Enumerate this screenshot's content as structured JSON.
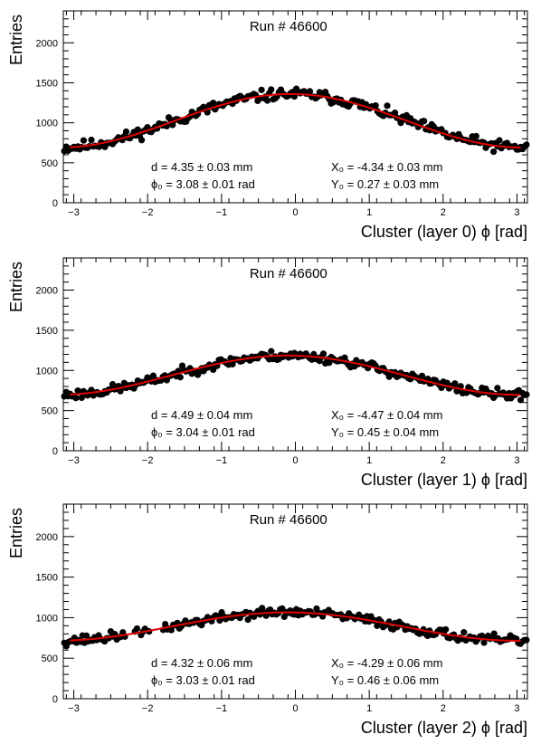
{
  "chart_data": [
    {
      "type": "scatter",
      "title": "Run # 46600",
      "xlabel": "Cluster (layer 0) ϕ [rad]",
      "ylabel": "Entries",
      "xlim": [
        -3.1416,
        3.1416
      ],
      "ylim": [
        0,
        2400
      ],
      "xticks": [
        -3,
        -2,
        -1,
        0,
        1,
        2,
        3
      ],
      "yticks": [
        0,
        500,
        1000,
        1500,
        2000
      ],
      "fit": {
        "model": "A - B*cos(phi - phi0)",
        "A": 1025,
        "B": 335,
        "phi0": 3.08,
        "color": "#e00000"
      },
      "data_model": {
        "n_points": 240,
        "noise": 35,
        "seed": 11
      },
      "fit_text": {
        "d": "d = 4.35 ± 0.03 mm",
        "phi0": "ϕ₀ = 3.08 ± 0.01 rad",
        "x0": "X₀ = -4.34 ± 0.03 mm",
        "y0": "Y₀ = 0.27 ± 0.03 mm"
      },
      "grid": false
    },
    {
      "type": "scatter",
      "title": "Run # 46600",
      "xlabel": "Cluster (layer 1) ϕ [rad]",
      "ylabel": "Entries",
      "xlim": [
        -3.1416,
        3.1416
      ],
      "ylim": [
        0,
        2400
      ],
      "xticks": [
        -3,
        -2,
        -1,
        0,
        1,
        2,
        3
      ],
      "yticks": [
        0,
        500,
        1000,
        1500,
        2000
      ],
      "fit": {
        "model": "A - B*cos(phi - phi0)",
        "A": 940,
        "B": 245,
        "phi0": 3.04,
        "color": "#e00000"
      },
      "data_model": {
        "n_points": 240,
        "noise": 30,
        "seed": 23
      },
      "fit_text": {
        "d": "d = 4.49 ± 0.04 mm",
        "phi0": "ϕ₀ = 3.04 ± 0.01 rad",
        "x0": "X₀ = -4.47 ± 0.04 mm",
        "y0": "Y₀ = 0.45 ± 0.04 mm"
      },
      "grid": false
    },
    {
      "type": "scatter",
      "title": "Run # 46600",
      "xlabel": "Cluster (layer 2) ϕ [rad]",
      "ylabel": "Entries",
      "xlim": [
        -3.1416,
        3.1416
      ],
      "ylim": [
        0,
        2400
      ],
      "xticks": [
        -3,
        -2,
        -1,
        0,
        1,
        2,
        3
      ],
      "yticks": [
        0,
        500,
        1000,
        1500,
        2000
      ],
      "fit": {
        "model": "A - B*cos(phi - phi0)",
        "A": 890,
        "B": 175,
        "phi0": 3.03,
        "color": "#e00000"
      },
      "data_model": {
        "n_points": 230,
        "noise": 30,
        "seed": 37,
        "gap": [
          -2.3,
          -1.8
        ]
      },
      "fit_text": {
        "d": "d = 4.32 ± 0.06 mm",
        "phi0": "ϕ₀ = 3.03 ± 0.01 rad",
        "x0": "X₀ = -4.29 ± 0.06 mm",
        "y0": "Y₀ = 0.46 ± 0.06 mm"
      },
      "grid": false
    }
  ]
}
